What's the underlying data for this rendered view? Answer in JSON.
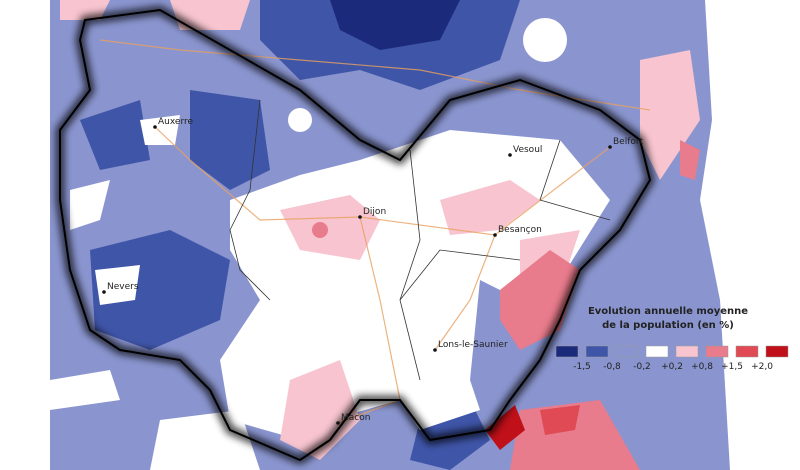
{
  "cities": [
    {
      "name": "Auxerre"
    },
    {
      "name": "Vesoul"
    },
    {
      "name": "Belfort"
    },
    {
      "name": "Dijon"
    },
    {
      "name": "Besançon"
    },
    {
      "name": "Nevers"
    },
    {
      "name": "Lons-le-Saunier"
    },
    {
      "name": "Macon"
    }
  ],
  "legend": {
    "title_line1": "Evolution annuelle moyenne",
    "title_line2": "de la population (en %)",
    "colors": [
      "#1c2a7c",
      "#3f55a8",
      "#8a95cf",
      "#ffffff",
      "#f7c4cf",
      "#e87b8c",
      "#e04a55",
      "#c0101a"
    ],
    "labels": [
      "-1,5",
      "-0,8",
      "-0,2",
      "+0,2",
      "+0,8",
      "+1,5",
      "+2,0"
    ]
  }
}
